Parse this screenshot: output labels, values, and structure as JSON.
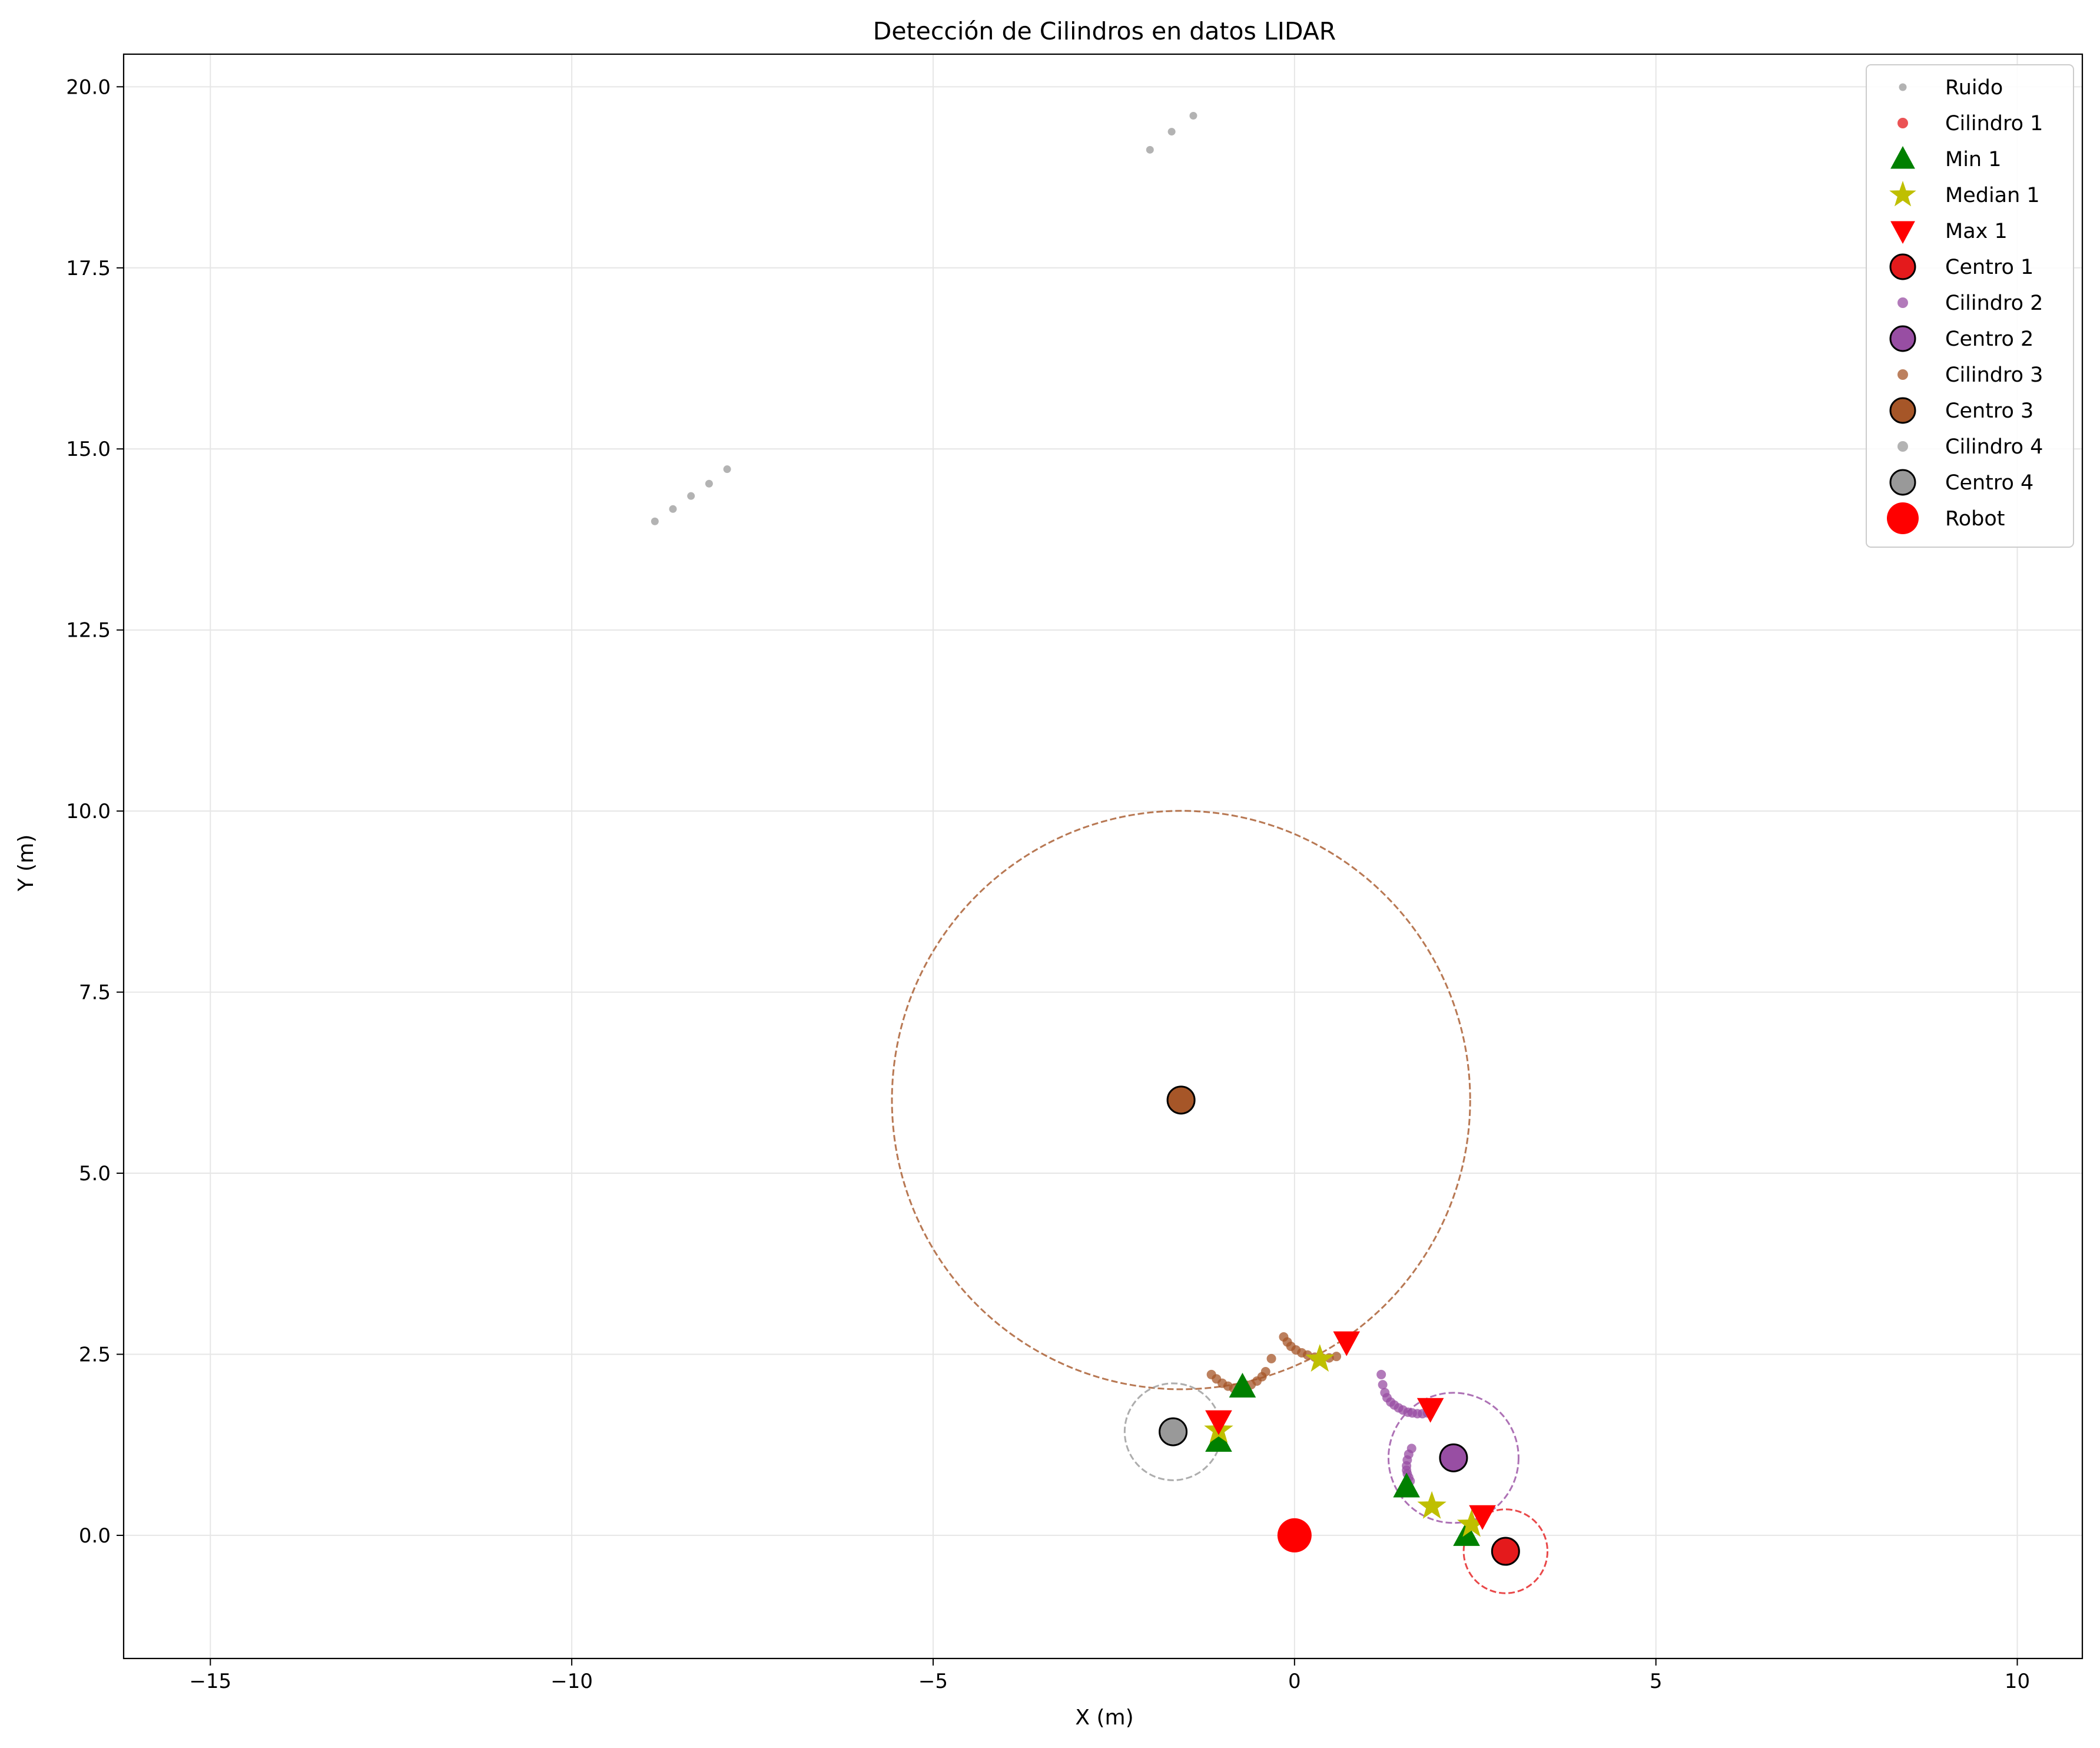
{
  "chart_data": {
    "type": "scatter",
    "title": "Detección de Cilindros en datos LIDAR",
    "xlabel": "X (m)",
    "ylabel": "Y (m)",
    "xlim": [
      -16.2,
      10.9
    ],
    "ylim": [
      -1.7,
      20.45
    ],
    "xticks": [
      -15,
      -10,
      -5,
      0,
      5,
      10
    ],
    "xtick_labels": [
      "−15",
      "−10",
      "−5",
      "0",
      "5",
      "10"
    ],
    "yticks": [
      0.0,
      2.5,
      5.0,
      7.5,
      10.0,
      12.5,
      15.0,
      17.5,
      20.0
    ],
    "ytick_labels": [
      "0.0",
      "2.5",
      "5.0",
      "7.5",
      "10.0",
      "12.5",
      "15.0",
      "17.5",
      "20.0"
    ],
    "grid": true,
    "legend_position": "top-right",
    "colors": {
      "noise": "#999999",
      "cyl1": "#e41a1c",
      "cyl2": "#984ea3",
      "cyl3": "#a65628",
      "cyl4": "#999999",
      "min": "#008000",
      "median": "#bfbf00",
      "max": "#ff0000",
      "robot": "#ff0000"
    },
    "noise": {
      "name": "Ruido",
      "x": [
        -8.85,
        -8.6,
        -8.35,
        -8.1,
        -7.85,
        -2.0,
        -1.7,
        -1.4
      ],
      "y": [
        14.0,
        14.17,
        14.35,
        14.52,
        14.72,
        19.13,
        19.38,
        19.6
      ]
    },
    "cylinders": [
      {
        "name": "Cilindro 1",
        "center_name": "Centro 1",
        "center": [
          2.92,
          -0.22
        ],
        "radius": 0.58,
        "color": "#e41a1c",
        "points_x": [],
        "points_y": []
      },
      {
        "name": "Cilindro 2",
        "center_name": "Centro 2",
        "center": [
          2.2,
          1.07
        ],
        "radius": 0.9,
        "color": "#984ea3",
        "points_x": [
          1.2,
          1.22,
          1.25,
          1.28,
          1.33,
          1.38,
          1.44,
          1.5,
          1.57,
          1.63,
          1.7,
          1.77,
          1.84,
          1.62,
          1.58,
          1.56,
          1.55,
          1.55,
          1.56,
          1.58,
          1.6
        ],
        "points_y": [
          2.22,
          2.08,
          1.97,
          1.9,
          1.84,
          1.8,
          1.76,
          1.73,
          1.7,
          1.69,
          1.68,
          1.68,
          1.69,
          1.2,
          1.12,
          1.04,
          0.96,
          0.9,
          0.85,
          0.8,
          0.75
        ]
      },
      {
        "name": "Cilindro 3",
        "center_name": "Centro 3",
        "center": [
          -1.57,
          6.01
        ],
        "radius": 4.0,
        "color": "#a65628",
        "points_x": [
          -1.15,
          -1.08,
          -1.0,
          -0.92,
          -0.84,
          -0.76,
          -0.68,
          -0.6,
          -0.52,
          -0.45,
          -0.4,
          -0.32,
          -0.15,
          -0.1,
          -0.05,
          0.02,
          0.1,
          0.18,
          0.28,
          0.38,
          0.48,
          0.58
        ],
        "points_y": [
          2.22,
          2.16,
          2.1,
          2.06,
          2.03,
          2.02,
          2.04,
          2.08,
          2.13,
          2.19,
          2.26,
          2.44,
          2.74,
          2.67,
          2.61,
          2.56,
          2.52,
          2.49,
          2.46,
          2.45,
          2.45,
          2.47
        ]
      },
      {
        "name": "Cilindro 4",
        "center_name": "Centro 4",
        "center": [
          -1.68,
          1.43
        ],
        "radius": 0.67,
        "color": "#999999",
        "points_x": [],
        "points_y": []
      }
    ],
    "markers": {
      "min_name": "Min 1",
      "median_name": "Median 1",
      "max_name": "Max 1",
      "min": [
        [
          -1.05,
          1.3
        ],
        [
          -0.72,
          2.05
        ],
        [
          1.55,
          0.67
        ],
        [
          2.38,
          0.0
        ]
      ],
      "median": [
        [
          -1.05,
          1.45
        ],
        [
          0.35,
          2.43
        ],
        [
          1.9,
          0.4
        ],
        [
          2.45,
          0.15
        ]
      ],
      "max": [
        [
          -1.05,
          1.58
        ],
        [
          0.72,
          2.67
        ],
        [
          1.88,
          1.75
        ],
        [
          2.6,
          0.27
        ]
      ]
    },
    "robot": {
      "name": "Robot",
      "x": 0.0,
      "y": 0.0
    }
  }
}
